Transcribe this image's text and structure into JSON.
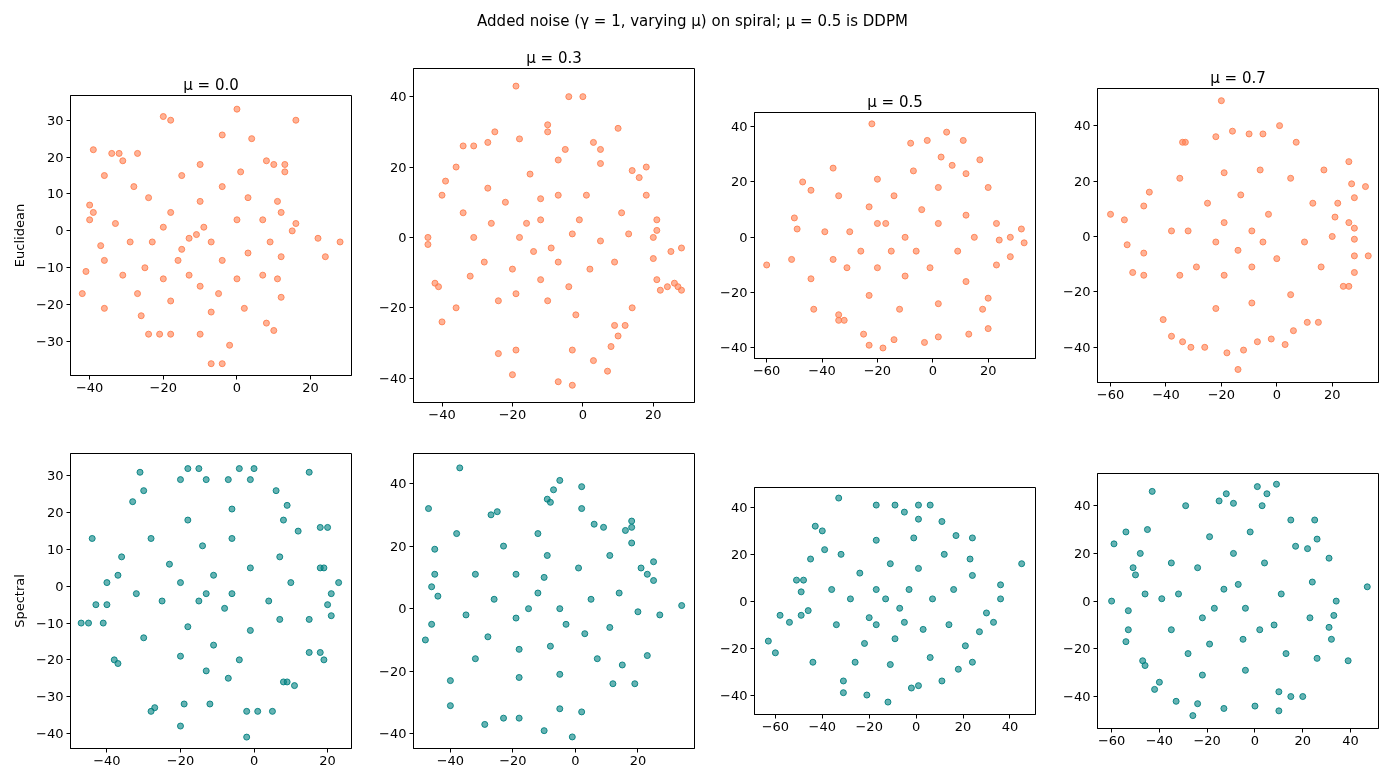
{
  "chart_data": [
    {
      "type": "other",
      "title": "Added noise (γ = 1, varying μ) on spiral; μ = 0.5 is DDPM"
    },
    {
      "type": "scatter",
      "title": "μ = 0.0",
      "ylabel": "Euclidean",
      "xlim": [
        -45.2,
        31.1
      ],
      "ylim": [
        -39.2,
        36.7
      ],
      "xticks": [
        {
          "value": -40,
          "label": "−40"
        },
        {
          "value": -20,
          "label": "−20"
        },
        0,
        20
      ],
      "yticks": [
        {
          "value": -30,
          "label": "−30"
        },
        {
          "value": -20,
          "label": "−20"
        },
        {
          "value": -10,
          "label": "−10"
        },
        0,
        10,
        20,
        30
      ],
      "marker": "circle",
      "series": [
        {
          "color": "#ff7f50",
          "x": [
            0,
            -20,
            -18,
            16,
            -39,
            -34,
            -32,
            -27,
            -31,
            -4,
            4,
            -36,
            -40,
            -40,
            -39,
            22,
            28,
            24,
            -41,
            -42,
            -36,
            -7,
            -4,
            -2,
            10,
            8,
            13,
            13,
            16,
            15,
            10,
            8,
            12,
            -24,
            -21,
            -18,
            2,
            -10,
            -26,
            -36,
            -37,
            12,
            12,
            11,
            -15,
            -10,
            1,
            -24,
            -28,
            -20,
            -11,
            -7,
            0,
            3,
            7,
            -16,
            -20,
            -27,
            -5,
            -13,
            -29,
            -33,
            -31,
            3,
            7,
            9,
            -4,
            -10,
            -18,
            -23,
            -25,
            -10,
            0,
            11,
            -13,
            -9,
            -15,
            -4,
            -18,
            -7
          ],
          "values": [
            33,
            31,
            30,
            30,
            22,
            21,
            21,
            21,
            19,
            26,
            25,
            15,
            7,
            3,
            5,
            -2,
            -3,
            -7,
            -11,
            -17,
            -21,
            -36,
            -36,
            -31,
            -27,
            -25,
            18,
            16,
            2,
            0,
            18,
            19,
            -18,
            -28,
            -28,
            -28,
            -21,
            -28,
            -23,
            -8,
            -4,
            -7,
            5,
            8,
            15,
            18,
            16,
            9,
            12,
            1,
            -1,
            -3,
            3,
            -6,
            -12,
            -8,
            -13,
            -17,
            -17,
            -12,
            -3,
            2,
            -12,
            9,
            3,
            -3,
            12,
            8,
            5,
            -3,
            -10,
            -15,
            -13,
            -13,
            -2,
            1,
            -5,
            -8,
            -19,
            -22
          ]
        }
      ]
    },
    {
      "type": "scatter",
      "title": "μ = 0.3",
      "xlim": [
        -48.1,
        31.7
      ],
      "ylim": [
        -46.9,
        48.0
      ],
      "xticks": [
        {
          "value": -40,
          "label": "−40"
        },
        {
          "value": -20,
          "label": "−20"
        },
        0,
        20
      ],
      "yticks": [
        {
          "value": -40,
          "label": "−40"
        },
        {
          "value": -20,
          "label": "−20"
        },
        0,
        20,
        40
      ],
      "marker": "circle",
      "series": [
        {
          "color": "#ff7f50",
          "x": [
            -19,
            -4,
            0,
            -10,
            -10,
            10,
            -25,
            -18,
            -27,
            -34,
            -31,
            -36,
            -39,
            -40,
            -44,
            -44,
            -42,
            -41,
            -40,
            -36,
            -24,
            -20,
            -19,
            -7,
            -3,
            -3,
            3,
            7,
            8,
            10,
            9,
            12,
            22,
            24,
            26,
            27,
            28,
            28,
            25,
            21,
            21,
            21,
            20,
            20,
            18,
            18,
            14,
            16,
            14,
            5,
            3,
            -5,
            -7,
            5,
            -12,
            -7,
            -14,
            -12,
            -18,
            -22,
            -26,
            -1,
            5,
            9,
            -4,
            -12,
            -20,
            -28,
            -31,
            -34,
            -27,
            -15,
            -7,
            1,
            11,
            13,
            2,
            -10,
            -19,
            -2,
            -24,
            -32,
            -9,
            -16,
            -3
          ],
          "values": [
            43,
            40,
            40,
            32,
            30,
            31,
            30,
            28,
            27,
            26,
            26,
            20,
            16,
            12,
            0,
            -2,
            -13,
            -14,
            -24,
            -20,
            -33,
            -39,
            -32,
            -41,
            -42,
            -32,
            -35,
            -38,
            -31,
            -28,
            -25,
            -25,
            -15,
            -14,
            -13,
            -14,
            -15,
            -3,
            -4,
            -12,
            2,
            5,
            0,
            -6,
            12,
            20,
            19,
            17,
            -20,
            25,
            27,
            25,
            22,
            21,
            11,
            -7,
            -4,
            5,
            0,
            10,
            4,
            5,
            -1,
            -7,
            -14,
            -12,
            -9,
            -7,
            0,
            7,
            14,
            18,
            12,
            12,
            7,
            1,
            -9,
            -18,
            -16,
            -22,
            -18,
            -11,
            -3,
            4,
            1
          ]
        }
      ]
    },
    {
      "type": "scatter",
      "title": "μ = 0.5",
      "xlim": [
        -64.4,
        37.1
      ],
      "ylim": [
        -43.8,
        45.1
      ],
      "xticks": [
        {
          "value": -60,
          "label": "−60"
        },
        {
          "value": -40,
          "label": "−40"
        },
        {
          "value": -20,
          "label": "−20"
        },
        0,
        20
      ],
      "yticks": [
        {
          "value": -40,
          "label": "−40"
        },
        {
          "value": -20,
          "label": "−20"
        },
        0,
        20,
        40
      ],
      "marker": "circle",
      "series": [
        {
          "color": "#ff7f50",
          "x": [
            -22,
            5,
            11,
            -2,
            -8,
            17,
            -36,
            -47,
            -44,
            -50,
            -49,
            -51,
            -60,
            -44,
            -43,
            -34,
            -34,
            -32,
            -25,
            -23,
            -18,
            -14,
            -3,
            2,
            13,
            20,
            18,
            20,
            23,
            28,
            28,
            32,
            33,
            24,
            23,
            20,
            12,
            7,
            3,
            -20,
            -10,
            -4,
            -14,
            -23,
            -30,
            -31,
            -20,
            -10,
            -1,
            9,
            12,
            2,
            -7,
            -20,
            -34,
            -39,
            -36,
            -23,
            -12,
            2,
            12,
            15,
            -15,
            -6,
            2,
            -26,
            -17
          ],
          "values": [
            41,
            38,
            35,
            35,
            34,
            28,
            25,
            20,
            17,
            7,
            3,
            -8,
            -10,
            -15,
            -26,
            -28,
            -30,
            -30,
            -35,
            -39,
            -40,
            -37,
            -38,
            -36,
            -35,
            -33,
            -26,
            -22,
            -10,
            -7,
            0,
            3,
            -2,
            -1,
            5,
            18,
            23,
            26,
            29,
            5,
            0,
            10,
            15,
            11,
            2,
            -11,
            -11,
            -14,
            -11,
            -5,
            8,
            18,
            24,
            21,
            15,
            2,
            -8,
            -21,
            -26,
            -24,
            -16,
            0,
            -5,
            -5,
            5,
            -5,
            5
          ]
        }
      ]
    },
    {
      "type": "scatter",
      "title": "μ = 0.7",
      "xlim": [
        -64.7,
        36.7
      ],
      "ylim": [
        -52.7,
        53.4
      ],
      "xticks": [
        {
          "value": -60,
          "label": "−60"
        },
        {
          "value": -40,
          "label": "−40"
        },
        {
          "value": -20,
          "label": "−20"
        },
        0,
        20
      ],
      "yticks": [
        {
          "value": -40,
          "label": "−40"
        },
        {
          "value": -20,
          "label": "−20"
        },
        0,
        20,
        40
      ],
      "marker": "circle",
      "series": [
        {
          "color": "#ff7f50",
          "x": [
            -20,
            1,
            -16,
            -10,
            -5,
            -22,
            -34,
            -33,
            7,
            26,
            32,
            27,
            28,
            17,
            -60,
            -55,
            -54,
            -52,
            -48,
            -46,
            -48,
            -48,
            -41,
            -38,
            -34,
            -31,
            -26,
            -18,
            -14,
            -12,
            -7,
            -2,
            3,
            6,
            11,
            15,
            24,
            26,
            28,
            28,
            33,
            28,
            28,
            26,
            22,
            21,
            -19,
            -9,
            -3,
            -13,
            -25,
            -32,
            -29,
            -19,
            -9,
            0,
            10,
            13,
            5,
            -6,
            -19,
            -35,
            -38,
            -35,
            -22,
            -9,
            5,
            16,
            20,
            -14,
            -5,
            -22
          ],
          "values": [
            49,
            40,
            38,
            37,
            37,
            36,
            34,
            34,
            34,
            27,
            18,
            19,
            14,
            24,
            8,
            6,
            -3,
            -13,
            11,
            16,
            -6,
            -14,
            -30,
            -36,
            -38,
            -40,
            -40,
            -42,
            -48,
            -41,
            -38,
            -37,
            -39,
            -34,
            -31,
            -31,
            -18,
            -18,
            -13,
            -7,
            -7,
            -1,
            3,
            5,
            12,
            7,
            5,
            2,
            8,
            15,
            12,
            2,
            -11,
            -14,
            -11,
            -8,
            -2,
            12,
            21,
            24,
            23,
            21,
            2,
            -14,
            -26,
            -24,
            -21,
            -11,
            0,
            -5,
            -2,
            -2
          ]
        }
      ]
    },
    {
      "type": "scatter",
      "ylabel": "Spectral",
      "xlim": [
        -49.9,
        26.5
      ],
      "ylim": [
        -44.1,
        36.1
      ],
      "xticks": [
        {
          "value": -40,
          "label": "−40"
        },
        {
          "value": -20,
          "label": "−20"
        },
        0,
        20
      ],
      "yticks": [
        {
          "value": -40,
          "label": "−40"
        },
        {
          "value": -30,
          "label": "−30"
        },
        {
          "value": -20,
          "label": "−20"
        },
        {
          "value": -10,
          "label": "−10"
        },
        0,
        10,
        20,
        30
      ],
      "marker": "circle",
      "series": [
        {
          "color": "#008080",
          "x": [
            -2,
            -20,
            -28,
            -27,
            1,
            5,
            -2,
            -12,
            -19,
            11,
            9,
            -37,
            -38,
            -41,
            -47,
            -45,
            -40,
            -43,
            -40,
            -44,
            -37,
            -36,
            -31,
            -30,
            -33,
            -20,
            -18,
            -15,
            -13,
            -4,
            0,
            -1,
            -7,
            15,
            6,
            9,
            8,
            12,
            18,
            20,
            18,
            19,
            23,
            21,
            20,
            21,
            15,
            15,
            18,
            19,
            8,
            -7,
            -11,
            -15,
            -8,
            -18,
            -25,
            -23,
            -14,
            -6,
            -1,
            4,
            -1,
            -11,
            -20,
            -30,
            -32,
            -28,
            -18,
            -6,
            7,
            10,
            7,
            -4,
            -13,
            -13,
            -6,
            -20
          ],
          "values": [
            -41,
            -38,
            -34,
            -33,
            -34,
            -34,
            -34,
            -32,
            -32,
            -27,
            -26,
            -21,
            -20,
            -10,
            -10,
            -10,
            -5,
            -5,
            1,
            13,
            3,
            8,
            31,
            26,
            23,
            29,
            32,
            32,
            29,
            32,
            32,
            29,
            29,
            31,
            26,
            22,
            18,
            15,
            16,
            16,
            5,
            5,
            1,
            -2,
            -5,
            -8,
            -9,
            -18,
            -18,
            -20,
            -26,
            -25,
            3,
            -4,
            -6,
            -11,
            -4,
            6,
            11,
            13,
            5,
            -4,
            -12,
            -16,
            -19,
            -14,
            -2,
            13,
            18,
            21,
            8,
            1,
            -9,
            -20,
            -23,
            -2,
            -2,
            1
          ]
        }
      ]
    },
    {
      "type": "scatter",
      "xlim": [
        -51.8,
        38.1
      ],
      "ylim": [
        -44.7,
        49.6
      ],
      "xticks": [
        {
          "value": -40,
          "label": "−40"
        },
        {
          "value": -20,
          "label": "−20"
        },
        0,
        20
      ],
      "yticks": [
        {
          "value": -40,
          "label": "−40"
        },
        {
          "value": -20,
          "label": "−20"
        },
        0,
        20,
        40
      ],
      "marker": "circle",
      "series": [
        {
          "color": "#008080",
          "x": [
            -37,
            -47,
            -5,
            -7,
            -9,
            -8,
            2,
            2,
            -25,
            -27,
            -38,
            -45,
            -45,
            -46,
            -44,
            -46,
            -48,
            -40,
            -40,
            -29,
            -23,
            -18,
            -10,
            -1,
            2,
            -5,
            12,
            19,
            15,
            23,
            20,
            34,
            27,
            25,
            25,
            23,
            18,
            18,
            16,
            9,
            6,
            18,
            21,
            -12,
            -5,
            -19,
            -26,
            -19,
            -9,
            1,
            5,
            3,
            -8,
            -18,
            -28,
            -35,
            -32,
            -23,
            -12,
            11,
            14,
            11,
            7,
            -5,
            -18,
            -32,
            -15,
            -3,
            -10
          ],
          "values": [
            45,
            32,
            41,
            38,
            35,
            34,
            39,
            32,
            31,
            30,
            24,
            19,
            11,
            7,
            4,
            -5,
            -10,
            -23,
            -31,
            -37,
            -35,
            -35,
            -39,
            -41,
            -33,
            -32,
            -24,
            -24,
            -18,
            -15,
            -1,
            1,
            -2,
            15,
            9,
            11,
            26,
            28,
            25,
            26,
            27,
            21,
            13,
            5,
            0,
            -3,
            3,
            11,
            17,
            13,
            3,
            -8,
            -12,
            -13,
            -9,
            -2,
            11,
            20,
            24,
            17,
            5,
            -6,
            -16,
            -21,
            -22,
            -16,
            0,
            -5,
            10
          ]
        }
      ]
    },
    {
      "type": "scatter",
      "xlim": [
        -68.9,
        50.9
      ],
      "ylim": [
        -48.3,
        48.5
      ],
      "xticks": [
        {
          "value": -60,
          "label": "−60"
        },
        {
          "value": -40,
          "label": "−40"
        },
        {
          "value": -20,
          "label": "−20"
        },
        0,
        20,
        40
      ],
      "yticks": [
        {
          "value": -40,
          "label": "−40"
        },
        {
          "value": -20,
          "label": "−20"
        },
        0,
        20,
        40
      ],
      "marker": "circle",
      "series": [
        {
          "color": "#008080",
          "x": [
            -33,
            -12,
            -63,
            -60,
            -58,
            -54,
            -51,
            -48,
            -49,
            -49,
            -44,
            -46,
            -45,
            -43,
            -40,
            -39,
            -31,
            -31,
            -21,
            -17,
            -9,
            1,
            6,
            11,
            1,
            -5,
            -2,
            1,
            11,
            18,
            24,
            21,
            27,
            30,
            33,
            36,
            36,
            45,
            24,
            23,
            24,
            17,
            -17,
            -7,
            -20,
            -28,
            -24,
            -11,
            1,
            7,
            3,
            -9,
            -22,
            -34,
            -36,
            -32,
            -17,
            -1,
            12,
            16,
            14,
            6,
            -11,
            -26,
            -13,
            -3,
            -17,
            -5
          ],
          "values": [
            44,
            -43,
            -17,
            -22,
            -6,
            -9,
            9,
            9,
            4,
            -6,
            -26,
            -4,
            18,
            32,
            30,
            22,
            -34,
            -39,
            -40,
            41,
            41,
            41,
            41,
            34,
            35,
            38,
            -37,
            -36,
            -34,
            -29,
            -26,
            -19,
            -13,
            -5,
            -9,
            7,
            1,
            16,
            11,
            18,
            27,
            28,
            5,
            -3,
            -7,
            1,
            12,
            16,
            14,
            1,
            -12,
            -16,
            -18,
            -10,
            5,
            20,
            26,
            27,
            20,
            5,
            -10,
            -24,
            -27,
            -26,
            1,
            5,
            -10,
            -9
          ]
        }
      ]
    },
    {
      "type": "scatter",
      "xlim": [
        -65.9,
        51.7
      ],
      "ylim": [
        -53.4,
        53.5
      ],
      "xticks": [
        {
          "value": -60,
          "label": "−60"
        },
        {
          "value": -40,
          "label": "−40"
        },
        {
          "value": -20,
          "label": "−20"
        },
        0,
        20,
        40
      ],
      "yticks": [
        {
          "value": -40,
          "label": "−40"
        },
        {
          "value": -20,
          "label": "−20"
        },
        0,
        20,
        40
      ],
      "marker": "circle",
      "series": [
        {
          "color": "#008080",
          "x": [
            -43,
            -29,
            -12,
            1,
            9,
            5,
            3,
            -15,
            -9,
            15,
            25,
            26,
            22,
            31,
            34,
            33,
            31,
            32,
            47,
            39,
            26,
            20,
            10,
            0,
            -26,
            -24,
            -33,
            -42,
            -40,
            -47,
            -46,
            -54,
            -53,
            -53,
            -60,
            -59,
            -54,
            -51,
            -50,
            -48,
            -46,
            -45,
            -13,
            10,
            15,
            -13,
            -4,
            -22,
            -32,
            -24,
            -9,
            4,
            11,
            8,
            -5,
            -19,
            -35,
            -39,
            -35,
            -19,
            -2,
            17,
            24,
            23,
            13,
            -4,
            -22,
            -17,
            -7,
            -28,
            2
          ],
          "values": [
            46,
            40,
            45,
            48,
            49,
            45,
            40,
            42,
            41,
            34,
            34,
            26,
            22,
            18,
            0,
            -6,
            -11,
            -16,
            6,
            -25,
            -24,
            -40,
            -46,
            -44,
            -48,
            -43,
            -42,
            -37,
            -34,
            -25,
            -27,
            -17,
            -12,
            -4,
            0,
            24,
            29,
            14,
            11,
            20,
            3,
            30,
            -45,
            -38,
            -40,
            5,
            -3,
            -7,
            3,
            14,
            20,
            16,
            3,
            -10,
            -16,
            -18,
            -12,
            1,
            16,
            27,
            29,
            23,
            8,
            -7,
            -22,
            -29,
            -31,
            -3,
            7,
            -22,
            -12
          ]
        }
      ]
    }
  ]
}
